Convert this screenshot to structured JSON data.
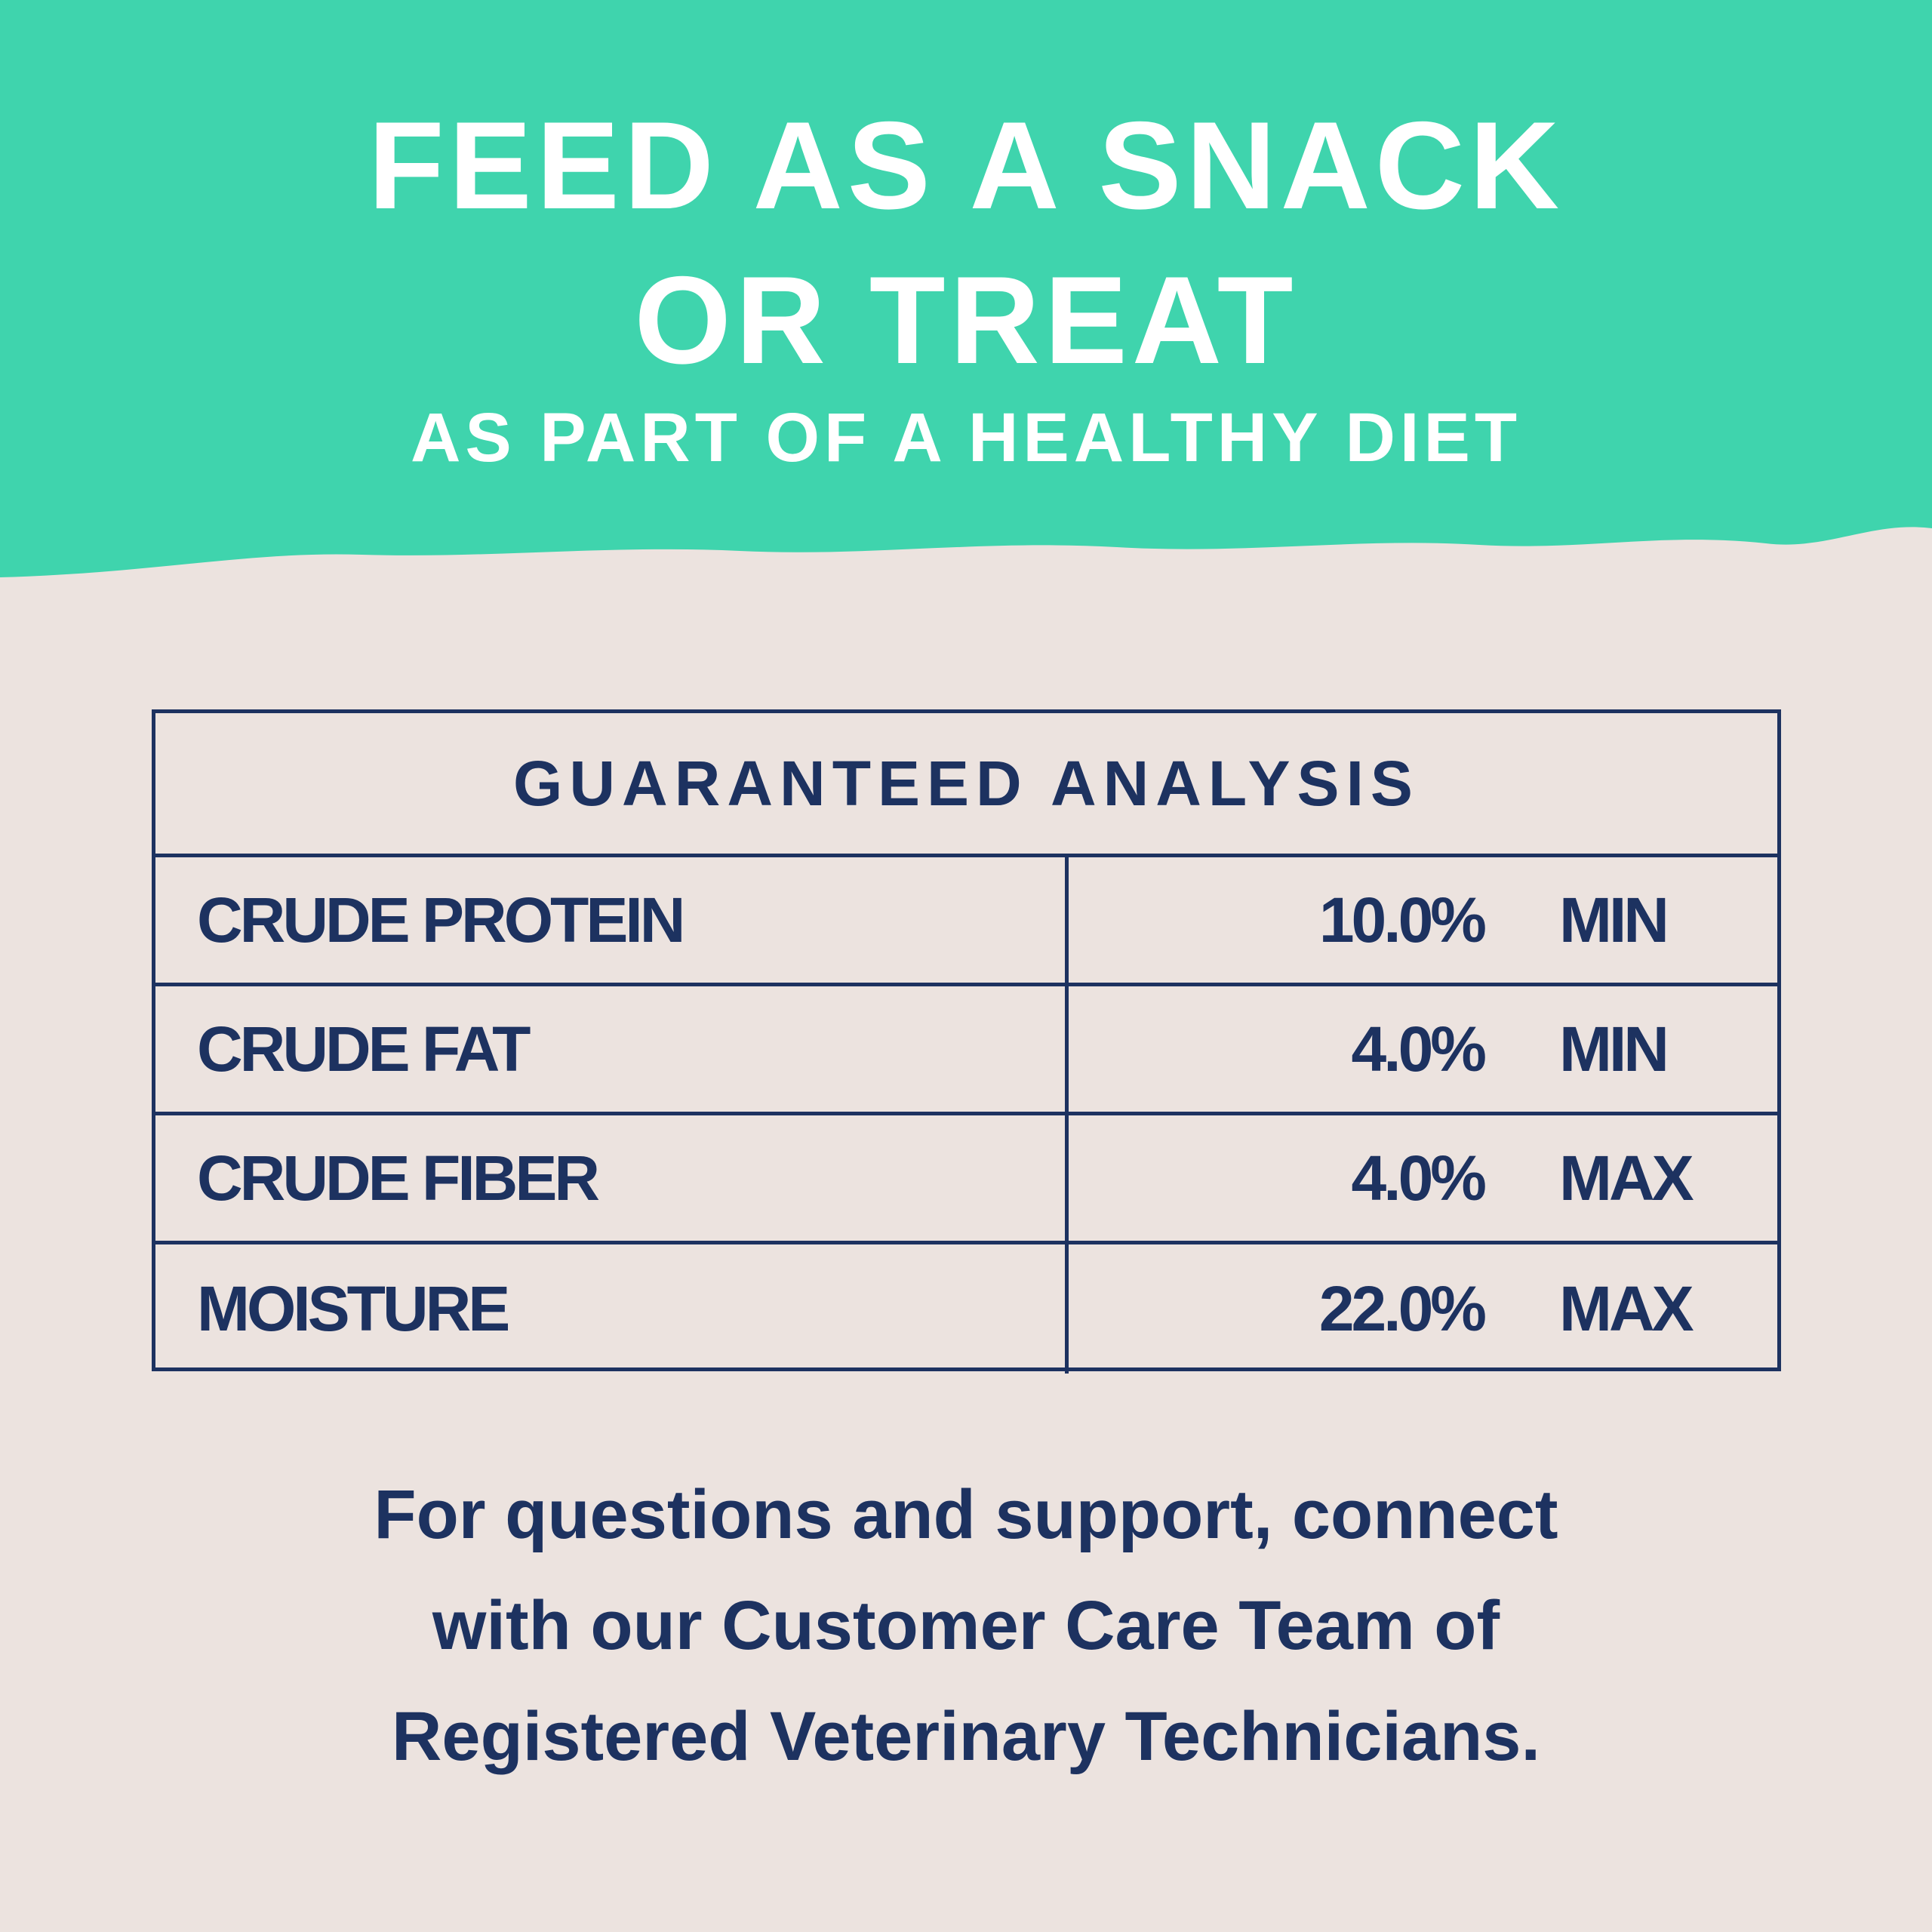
{
  "header": {
    "title_lines": [
      "FEED AS A SNACK",
      "OR TREAT"
    ],
    "subtitle": "AS PART OF A HEALTHY DIET"
  },
  "table": {
    "title": "GUARANTEED ANALYSIS",
    "rows": [
      [
        "CRUDE PROTEIN",
        "10.0%",
        "MIN"
      ],
      [
        "CRUDE FAT",
        "4.0%",
        "MIN"
      ],
      [
        "CRUDE FIBER",
        "4.0%",
        "MAX"
      ],
      [
        "MOISTURE",
        "22.0%",
        "MAX"
      ]
    ]
  },
  "footer": {
    "lines": [
      "For questions and support, connect",
      "with our Customer Care Team of",
      "Registered Veterinary Technicians."
    ]
  }
}
